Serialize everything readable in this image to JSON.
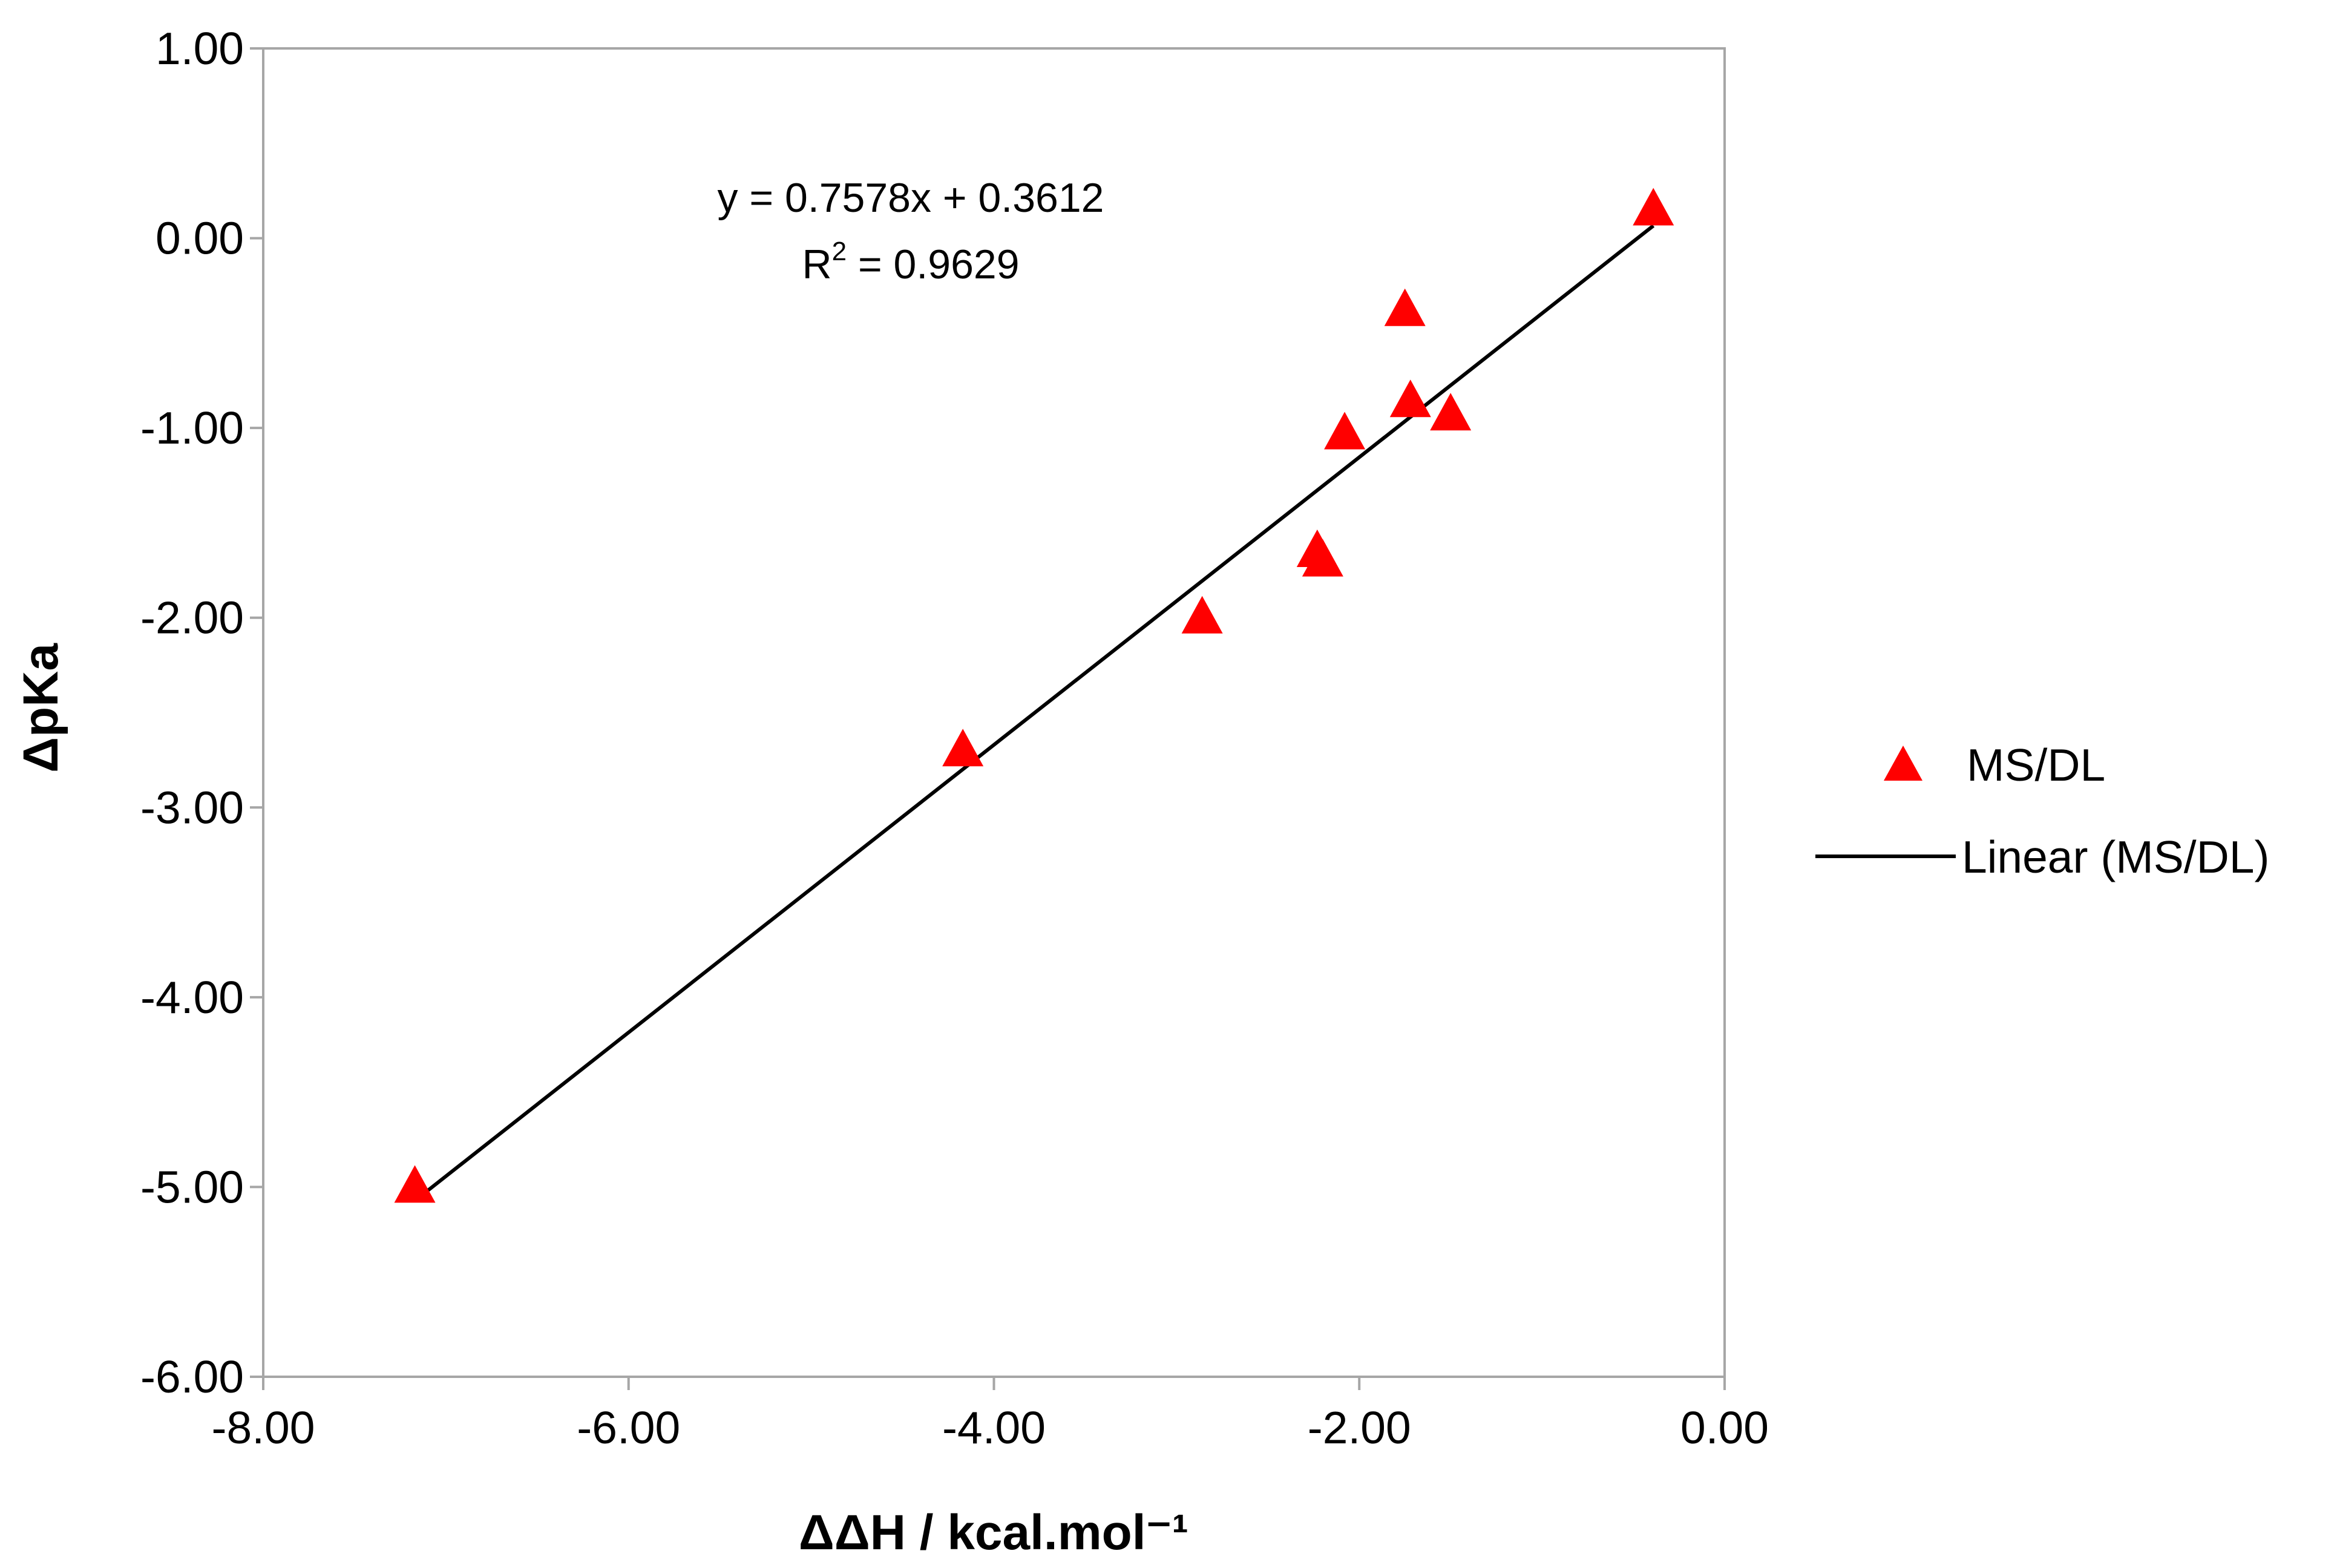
{
  "colors": {
    "marker": "#ff0000",
    "trendline": "#000000",
    "axis": "#a6a6a6"
  },
  "chart_data": {
    "type": "scatter",
    "title": "",
    "xlabel": "ΔΔH / kcal.mol⁻¹",
    "ylabel": "ΔpKa",
    "xlim": [
      -8.0,
      0.0
    ],
    "ylim": [
      -6.0,
      1.0
    ],
    "x_ticks": [
      "-8.00",
      "-6.00",
      "-4.00",
      "-2.00",
      "0.00"
    ],
    "x_tick_values": [
      -8,
      -6,
      -4,
      -2,
      0
    ],
    "y_ticks": [
      "1.00",
      "0.00",
      "-1.00",
      "-2.00",
      "-3.00",
      "-4.00",
      "-5.00",
      "-6.00"
    ],
    "y_tick_values": [
      1,
      0,
      -1,
      -2,
      -3,
      -4,
      -5,
      -6
    ],
    "grid": false,
    "legend_position": "right",
    "series": [
      {
        "name": "MS/DL",
        "marker": "triangle",
        "points": [
          {
            "x": -7.17,
            "y": -5.0
          },
          {
            "x": -4.17,
            "y": -2.7
          },
          {
            "x": -2.86,
            "y": -2.0
          },
          {
            "x": -2.23,
            "y": -1.65
          },
          {
            "x": -2.2,
            "y": -1.7
          },
          {
            "x": -2.08,
            "y": -1.03
          },
          {
            "x": -1.75,
            "y": -0.38
          },
          {
            "x": -1.72,
            "y": -0.86
          },
          {
            "x": -1.5,
            "y": -0.93
          },
          {
            "x": -0.39,
            "y": 0.15
          }
        ]
      }
    ],
    "trendline": {
      "name": "Linear (MS/DL)",
      "slope": 0.7578,
      "intercept": 0.3612,
      "x_range": [
        -7.17,
        -0.39
      ],
      "equation": "y = 0.7578x + 0.3612",
      "r2_prefix": "R",
      "r2_exp": "2",
      "r2_value": " = 0.9629"
    }
  }
}
